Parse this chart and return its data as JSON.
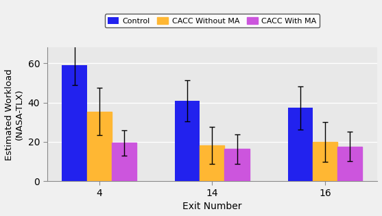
{
  "exits": [
    "4",
    "14",
    "16"
  ],
  "control": [
    58.96,
    40.82,
    37.27
  ],
  "cacc_without_ma": [
    35.38,
    18.23,
    19.94
  ],
  "cacc_with_ma": [
    19.47,
    16.32,
    17.63
  ],
  "control_err": [
    10.0,
    10.5,
    11.0
  ],
  "cacc_without_ma_err": [
    12.0,
    9.5,
    10.0
  ],
  "cacc_with_ma_err": [
    6.5,
    7.5,
    7.5
  ],
  "control_color": "#2222EE",
  "cacc_without_ma_color": "#FFB733",
  "cacc_with_ma_color": "#CC55DD",
  "plot_bg_color": "#E8E8E8",
  "fig_bg_color": "#F0F0F0",
  "ylabel": "Estimated Workload\n(NASA-TLX)",
  "xlabel": "Exit Number",
  "ylim": [
    0,
    68
  ],
  "yticks": [
    0,
    20,
    40,
    60
  ],
  "legend_labels": [
    "Control",
    "CACC Without MA",
    "CACC With MA"
  ],
  "bar_width": 0.22,
  "figsize": [
    5.57,
    3.15
  ],
  "dpi": 100
}
